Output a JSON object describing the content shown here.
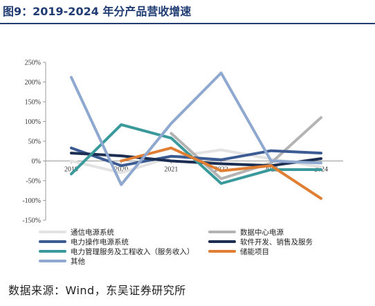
{
  "header": {
    "title": "图9：2019-2024 年分产品营收增速",
    "title_color": "#1f3b72"
  },
  "footer": {
    "source": "数据来源：Wind，东吴证券研究所"
  },
  "chart_data": {
    "type": "line",
    "title": "",
    "xlabel": "",
    "ylabel": "",
    "categories": [
      "2019",
      "2020",
      "2021",
      "2022",
      "2023",
      "2024"
    ],
    "ylim": [
      -150,
      250
    ],
    "yticks": [
      -150,
      -100,
      -50,
      0,
      50,
      100,
      150,
      200,
      250
    ],
    "ytick_labels": [
      "-150%",
      "-100%",
      "-50%",
      "0%",
      "50%",
      "100%",
      "150%",
      "200%",
      "250%"
    ],
    "grid": false,
    "legend_position": "bottom",
    "series": [
      {
        "name": "通信电源系统",
        "color": "#e3e3e3",
        "values": [
          0,
          -30,
          10,
          28,
          5,
          -15
        ]
      },
      {
        "name": "数据中心电源",
        "color": "#b3b3b3",
        "values": [
          null,
          null,
          70,
          -45,
          -5,
          110
        ]
      },
      {
        "name": "电力操作电源系统",
        "color": "#3c5b93",
        "values": [
          33,
          -12,
          12,
          3,
          26,
          20
        ]
      },
      {
        "name": "软件开发、销售及服务",
        "color": "#1c2f52",
        "values": [
          20,
          13,
          0,
          -7,
          -12,
          6
        ]
      },
      {
        "name": "电力管理服务及工程收入（服务收入）",
        "color": "#3a9a9b",
        "values": [
          -33,
          92,
          58,
          -57,
          -22,
          -22
        ]
      },
      {
        "name": "储能项目",
        "color": "#e07e34",
        "values": [
          null,
          0,
          33,
          -25,
          -12,
          -95
        ]
      },
      {
        "name": "其他",
        "color": "#8ea8cf",
        "values": [
          212,
          -60,
          95,
          223,
          0,
          -5
        ]
      }
    ]
  }
}
